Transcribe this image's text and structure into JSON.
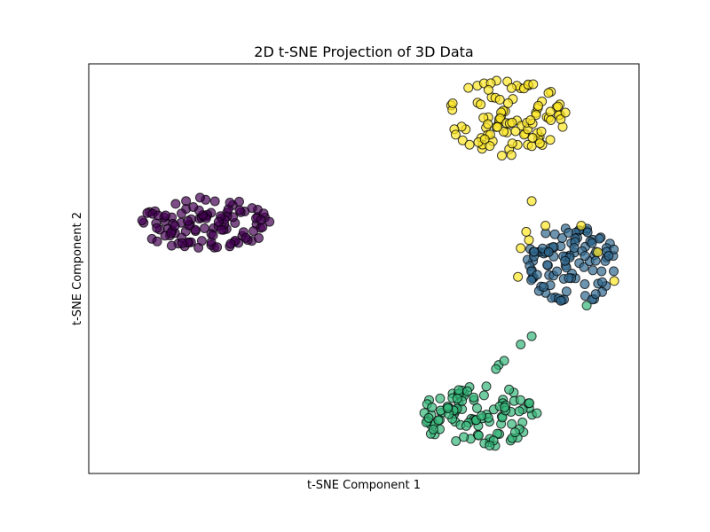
{
  "chart_data": {
    "type": "scatter",
    "title": "2D t-SNE Projection of 3D Data",
    "xlabel": "t-SNE Component 1",
    "ylabel": "t-SNE Component 2",
    "xlim": [
      0,
      100
    ],
    "ylim": [
      0,
      100
    ],
    "ticks_visible": false,
    "grid": false,
    "legend": "none",
    "marker_alpha": 0.7,
    "marker_edge_color": "#000000",
    "clusters": [
      {
        "color": "#440154",
        "center": [
          21,
          61
        ],
        "spread": [
          12,
          6.5
        ],
        "count": 110,
        "seed": 11
      },
      {
        "color": "#31688e",
        "center": [
          88,
          51
        ],
        "spread": [
          8.5,
          9.5
        ],
        "count": 105,
        "seed": 23
      },
      {
        "color": "#35b779",
        "center": [
          71,
          14
        ],
        "spread": [
          11,
          7.5
        ],
        "count": 105,
        "seed": 37
      },
      {
        "color": "#fde725",
        "center": [
          76,
          87
        ],
        "spread": [
          11,
          9.5
        ],
        "count": 100,
        "seed": 51
      }
    ],
    "extra_points": [
      {
        "x": 80.5,
        "y": 33.5,
        "color": "#35b779"
      },
      {
        "x": 78.5,
        "y": 31.5,
        "color": "#35b779"
      },
      {
        "x": 74.5,
        "y": 26.5,
        "color": "#35b779"
      },
      {
        "x": 75.5,
        "y": 27.5,
        "color": "#35b779"
      },
      {
        "x": 74,
        "y": 25.5,
        "color": "#35b779"
      },
      {
        "x": 90.5,
        "y": 41,
        "color": "#35b779"
      },
      {
        "x": 80,
        "y": 57,
        "color": "#fde725"
      },
      {
        "x": 78.5,
        "y": 55,
        "color": "#fde725"
      },
      {
        "x": 79.5,
        "y": 59,
        "color": "#fde725"
      },
      {
        "x": 78,
        "y": 48,
        "color": "#fde725"
      },
      {
        "x": 83,
        "y": 60.5,
        "color": "#fde725"
      },
      {
        "x": 89.5,
        "y": 60.5,
        "color": "#fde725"
      },
      {
        "x": 95.5,
        "y": 47,
        "color": "#fde725"
      },
      {
        "x": 92.5,
        "y": 54,
        "color": "#fde725"
      },
      {
        "x": 80.5,
        "y": 66.5,
        "color": "#fde725"
      }
    ]
  }
}
